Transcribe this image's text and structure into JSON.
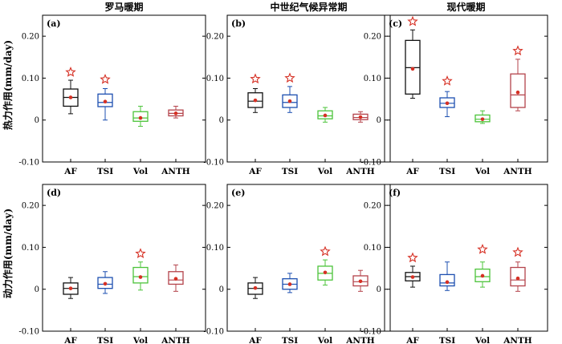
{
  "colors": {
    "AF": "#111111",
    "TSI": "#1c4fb0",
    "Vol": "#4cc43a",
    "ANTH": "#b4434b",
    "mean_dot": "#d63024",
    "star": "#d63024"
  },
  "row_labels": [
    "热力作用(mm/day)",
    "动力作用(mm/day)"
  ],
  "tick_labels": [
    "-0.10",
    "0",
    "0.10",
    "0.20"
  ],
  "chart_data": [
    {
      "type": "box",
      "panel": "(a)",
      "title": "罗马暖期",
      "row": 0,
      "col": 0,
      "ylim": [
        -0.1,
        0.25
      ],
      "yticks": [
        -0.1,
        0,
        0.1,
        0.2
      ],
      "categories": [
        "AF",
        "TSI",
        "Vol",
        "ANTH"
      ],
      "boxes": [
        {
          "whislo": 0.015,
          "q1": 0.033,
          "med": 0.054,
          "q3": 0.074,
          "whishi": 0.095,
          "mean": 0.054,
          "star": 0.114
        },
        {
          "whislo": 0.0,
          "q1": 0.032,
          "med": 0.042,
          "q3": 0.062,
          "whishi": 0.075,
          "mean": 0.044,
          "star": 0.097
        },
        {
          "whislo": -0.015,
          "q1": -0.003,
          "med": 0.005,
          "q3": 0.02,
          "whishi": 0.033,
          "mean": 0.005,
          "star": null
        },
        {
          "whislo": 0.005,
          "q1": 0.01,
          "med": 0.016,
          "q3": 0.024,
          "whishi": 0.033,
          "mean": 0.016,
          "star": null
        }
      ]
    },
    {
      "type": "box",
      "panel": "(b)",
      "title": "中世纪气候异常期",
      "row": 0,
      "col": 1,
      "ylim": [
        -0.1,
        0.25
      ],
      "yticks": [
        -0.1,
        0,
        0.1,
        0.2
      ],
      "categories": [
        "AF",
        "TSI",
        "Vol",
        "ANTH"
      ],
      "boxes": [
        {
          "whislo": 0.018,
          "q1": 0.03,
          "med": 0.045,
          "q3": 0.065,
          "whishi": 0.075,
          "mean": 0.047,
          "star": 0.098
        },
        {
          "whislo": 0.018,
          "q1": 0.03,
          "med": 0.042,
          "q3": 0.06,
          "whishi": 0.08,
          "mean": 0.045,
          "star": 0.1
        },
        {
          "whislo": -0.005,
          "q1": 0.003,
          "med": 0.01,
          "q3": 0.022,
          "whishi": 0.03,
          "mean": 0.011,
          "star": null
        },
        {
          "whislo": -0.005,
          "q1": 0.001,
          "med": 0.006,
          "q3": 0.014,
          "whishi": 0.02,
          "mean": 0.007,
          "star": null
        }
      ]
    },
    {
      "type": "box",
      "panel": "(c)",
      "title": "现代暖期",
      "row": 0,
      "col": 2,
      "ylim": [
        -0.1,
        0.25
      ],
      "yticks": [
        -0.1,
        0,
        0.1,
        0.2
      ],
      "categories": [
        "AF",
        "TSI",
        "Vol",
        "ANTH"
      ],
      "boxes": [
        {
          "whislo": 0.052,
          "q1": 0.062,
          "med": 0.125,
          "q3": 0.19,
          "whishi": 0.215,
          "mean": 0.122,
          "star": 0.235
        },
        {
          "whislo": 0.008,
          "q1": 0.03,
          "med": 0.04,
          "q3": 0.053,
          "whishi": 0.068,
          "mean": 0.04,
          "star": 0.093
        },
        {
          "whislo": -0.008,
          "q1": -0.004,
          "med": 0.002,
          "q3": 0.012,
          "whishi": 0.022,
          "mean": 0.002,
          "star": null
        },
        {
          "whislo": 0.022,
          "q1": 0.03,
          "med": 0.06,
          "q3": 0.11,
          "whishi": 0.145,
          "mean": 0.066,
          "star": 0.165
        }
      ]
    },
    {
      "type": "box",
      "panel": "(d)",
      "title": "",
      "row": 1,
      "col": 0,
      "ylim": [
        -0.1,
        0.25
      ],
      "yticks": [
        -0.1,
        0,
        0.1,
        0.2
      ],
      "categories": [
        "AF",
        "TSI",
        "Vol",
        "ANTH"
      ],
      "boxes": [
        {
          "whislo": -0.022,
          "q1": -0.012,
          "med": 0.002,
          "q3": 0.015,
          "whishi": 0.028,
          "mean": 0.002,
          "star": null
        },
        {
          "whislo": -0.01,
          "q1": 0.002,
          "med": 0.012,
          "q3": 0.028,
          "whishi": 0.042,
          "mean": 0.013,
          "star": null
        },
        {
          "whislo": -0.002,
          "q1": 0.015,
          "med": 0.03,
          "q3": 0.052,
          "whishi": 0.065,
          "mean": 0.029,
          "star": 0.085
        },
        {
          "whislo": -0.005,
          "q1": 0.012,
          "med": 0.022,
          "q3": 0.042,
          "whishi": 0.058,
          "mean": 0.025,
          "star": null
        }
      ]
    },
    {
      "type": "box",
      "panel": "(e)",
      "title": "",
      "row": 1,
      "col": 1,
      "ylim": [
        -0.1,
        0.25
      ],
      "yticks": [
        -0.1,
        0,
        0.1,
        0.2
      ],
      "categories": [
        "AF",
        "TSI",
        "Vol",
        "ANTH"
      ],
      "boxes": [
        {
          "whislo": -0.022,
          "q1": -0.012,
          "med": 0.002,
          "q3": 0.015,
          "whishi": 0.028,
          "mean": 0.003,
          "star": null
        },
        {
          "whislo": -0.008,
          "q1": 0.0,
          "med": 0.012,
          "q3": 0.025,
          "whishi": 0.038,
          "mean": 0.012,
          "star": null
        },
        {
          "whislo": 0.01,
          "q1": 0.022,
          "med": 0.038,
          "q3": 0.055,
          "whishi": 0.07,
          "mean": 0.04,
          "star": 0.09
        },
        {
          "whislo": -0.005,
          "q1": 0.008,
          "med": 0.018,
          "q3": 0.032,
          "whishi": 0.045,
          "mean": 0.019,
          "star": null
        }
      ]
    },
    {
      "type": "box",
      "panel": "(f)",
      "title": "",
      "row": 1,
      "col": 2,
      "ylim": [
        -0.1,
        0.25
      ],
      "yticks": [
        -0.1,
        0,
        0.1,
        0.2
      ],
      "categories": [
        "AF",
        "TSI",
        "Vol",
        "ANTH"
      ],
      "boxes": [
        {
          "whislo": 0.005,
          "q1": 0.02,
          "med": 0.03,
          "q3": 0.04,
          "whishi": 0.055,
          "mean": 0.029,
          "star": 0.075
        },
        {
          "whislo": -0.003,
          "q1": 0.008,
          "med": 0.015,
          "q3": 0.035,
          "whishi": 0.065,
          "mean": 0.017,
          "star": null
        },
        {
          "whislo": 0.005,
          "q1": 0.018,
          "med": 0.03,
          "q3": 0.048,
          "whishi": 0.065,
          "mean": 0.032,
          "star": 0.095
        },
        {
          "whislo": -0.005,
          "q1": 0.008,
          "med": 0.022,
          "q3": 0.052,
          "whishi": 0.065,
          "mean": 0.026,
          "star": 0.088
        }
      ]
    }
  ]
}
